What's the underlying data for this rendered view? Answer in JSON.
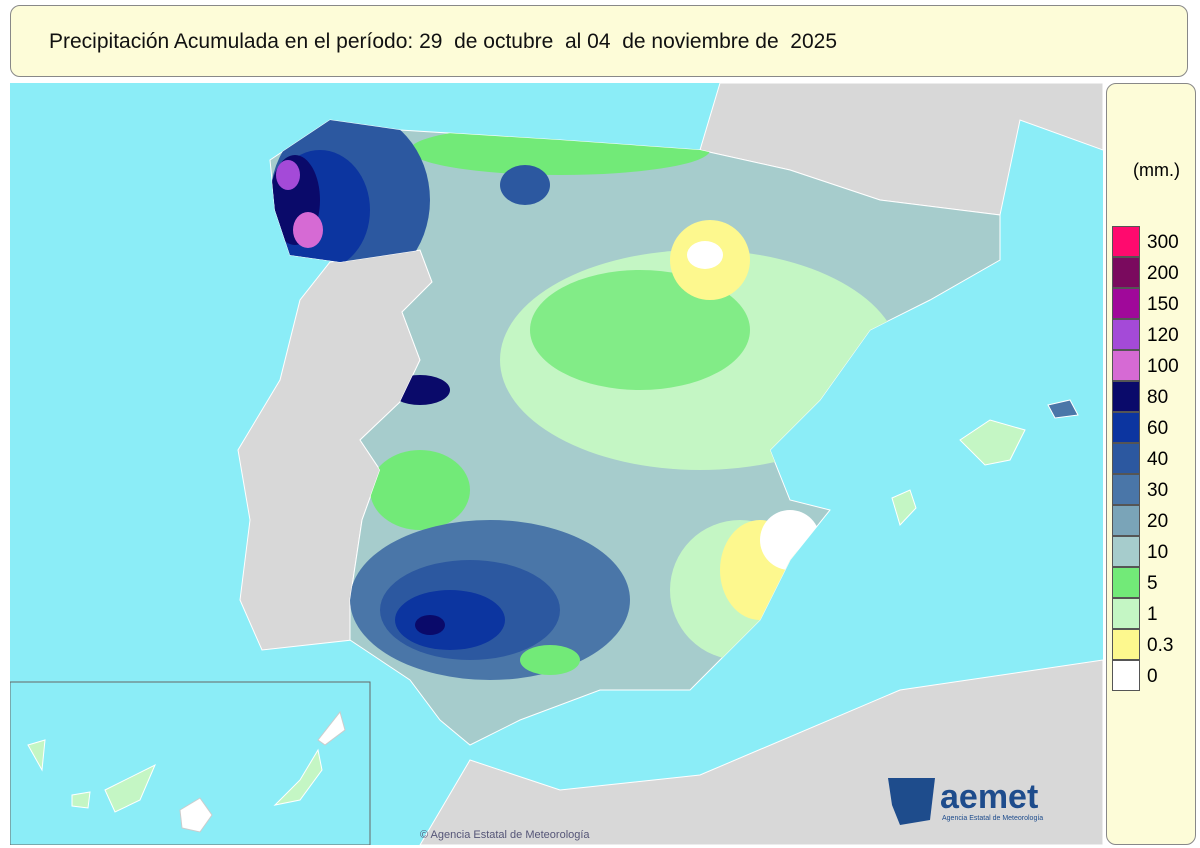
{
  "header": {
    "title": "Precipitación Acumulada en el período: 29  de octubre  al 04  de noviembre de  2025"
  },
  "legend": {
    "unit": "(mm.)",
    "items": [
      {
        "label": "300",
        "color": "#ff0a6e"
      },
      {
        "label": "200",
        "color": "#7a0a5e"
      },
      {
        "label": "150",
        "color": "#a0089a"
      },
      {
        "label": "120",
        "color": "#a44ad8"
      },
      {
        "label": "100",
        "color": "#d66ad4"
      },
      {
        "label": "80",
        "color": "#0a0a6a"
      },
      {
        "label": "60",
        "color": "#0c35a0"
      },
      {
        "label": "40",
        "color": "#2c58a0"
      },
      {
        "label": "30",
        "color": "#4a76a8"
      },
      {
        "label": "20",
        "color": "#7aa4b8"
      },
      {
        "label": "10",
        "color": "#a6cccc"
      },
      {
        "label": "5",
        "color": "#72ea78"
      },
      {
        "label": "1",
        "color": "#c4f6c4"
      },
      {
        "label": "0.3",
        "color": "#fdf88e"
      },
      {
        "label": "0",
        "color": "#ffffff"
      }
    ]
  },
  "logo": {
    "name": "aemet",
    "subtitle": "Agencia Estatal de Meteorología"
  },
  "copyright": "© Agencia Estatal de Meteorología"
}
